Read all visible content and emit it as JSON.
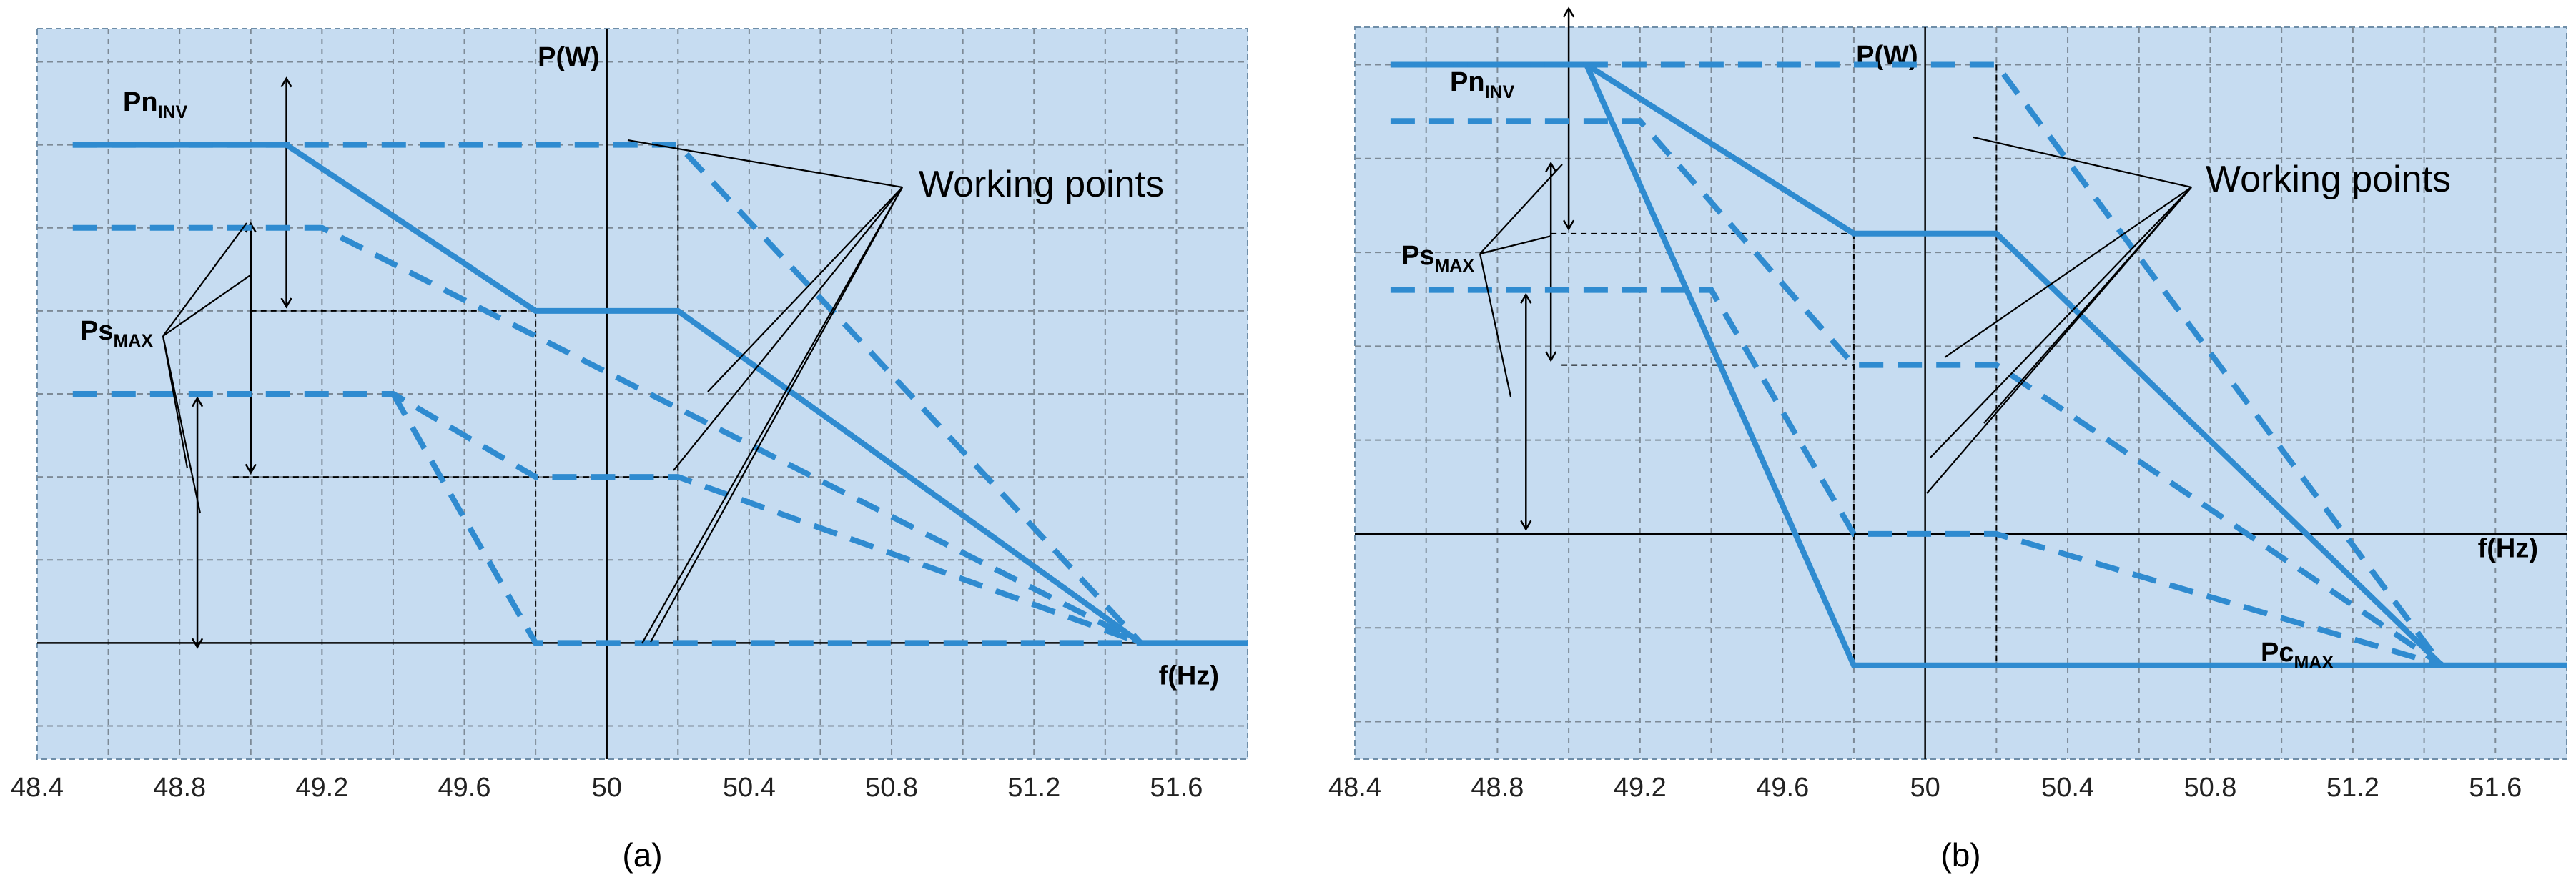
{
  "chart_data": [
    {
      "type": "line",
      "caption": "(a)",
      "xlabel": "f(Hz)",
      "ylabel": "P(W)",
      "x_ticks": [
        "48.4",
        "48.8",
        "49.2",
        "49.6",
        "50",
        "50.4",
        "50.8",
        "51.2",
        "51.6"
      ],
      "xlim": [
        48.4,
        51.8
      ],
      "ylim": [
        -1.4,
        7.4
      ],
      "grid": true,
      "annotations": {
        "pn": {
          "main": "Pn",
          "sub": "INV"
        },
        "ps": {
          "main": "Ps",
          "sub": "MAX"
        },
        "working_points": "Working points"
      },
      "series": [
        {
          "style": "solid",
          "x": [
            48.5,
            49.1,
            49.8,
            50.2,
            51.5,
            51.8
          ],
          "y": [
            6,
            6,
            4,
            4,
            0,
            0
          ]
        },
        {
          "style": "dashed",
          "x": [
            48.5,
            49.1,
            50.2,
            51.5
          ],
          "y": [
            6,
            6,
            6,
            0
          ]
        },
        {
          "style": "dashed",
          "x": [
            48.5,
            49.2,
            51.5
          ],
          "y": [
            5,
            5,
            0
          ]
        },
        {
          "style": "dashed",
          "x": [
            48.5,
            49.4,
            49.8,
            50.2,
            51.5
          ],
          "y": [
            3,
            3,
            2,
            2,
            0
          ]
        },
        {
          "style": "dashed",
          "x": [
            49.4,
            49.8,
            51.5
          ],
          "y": [
            3,
            0,
            0
          ]
        }
      ]
    },
    {
      "type": "line",
      "caption": "(b)",
      "xlabel": "f(Hz)",
      "ylabel": "P(W)",
      "x_ticks": [
        "48.4",
        "48.8",
        "49.2",
        "49.6",
        "50",
        "50.4",
        "50.8",
        "51.2",
        "51.6"
      ],
      "xlim": [
        48.4,
        51.8
      ],
      "ylim": [
        -2.4,
        5.4
      ],
      "grid": true,
      "annotations": {
        "pn": {
          "main": "Pn",
          "sub": "INV"
        },
        "ps": {
          "main": "Ps",
          "sub": "MAX"
        },
        "pc": {
          "main": "Pc",
          "sub": "MAX"
        },
        "working_points": "Working points"
      },
      "series": [
        {
          "style": "solid",
          "x": [
            48.5,
            49.05,
            49.8,
            50.2,
            51.45,
            51.8
          ],
          "y": [
            5,
            5,
            3.2,
            3.2,
            -1.4,
            -1.4
          ]
        },
        {
          "style": "solid",
          "x": [
            49.05,
            49.8,
            51.45
          ],
          "y": [
            5,
            -1.4,
            -1.4
          ]
        },
        {
          "style": "dashed",
          "x": [
            48.5,
            50.2,
            51.45
          ],
          "y": [
            5,
            5,
            -1.4
          ]
        },
        {
          "style": "dashed",
          "x": [
            48.5,
            49.2,
            49.8,
            50.2,
            51.45
          ],
          "y": [
            4.4,
            4.4,
            1.8,
            1.8,
            -1.4
          ]
        },
        {
          "style": "dashed",
          "x": [
            48.5,
            49.4,
            49.8,
            50.2,
            51.45
          ],
          "y": [
            2.6,
            2.6,
            0,
            0,
            -1.4
          ]
        }
      ]
    }
  ]
}
